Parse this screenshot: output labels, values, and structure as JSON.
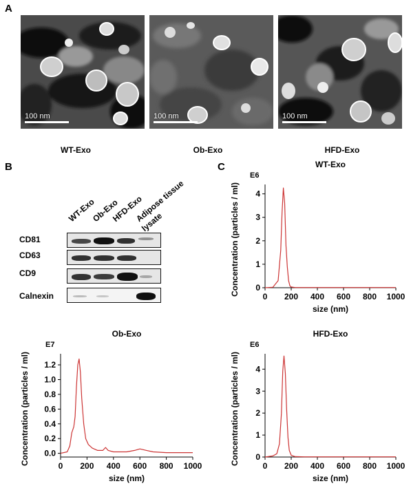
{
  "panels": {
    "a": {
      "letter": "A"
    },
    "b": {
      "letter": "B"
    },
    "c": {
      "letter": "C"
    }
  },
  "tem": {
    "scale_text": "100 nm",
    "images": [
      {
        "label": "WT-Exo"
      },
      {
        "label": "Ob-Exo"
      },
      {
        "label": "HFD-Exo"
      }
    ]
  },
  "western": {
    "columns": [
      "WT-Exo",
      "Ob-Exo",
      "HFD-Exo",
      "Adipose tissue",
      "lysate"
    ],
    "rows": [
      "CD81",
      "CD63",
      "CD9",
      "Calnexin"
    ]
  },
  "chart_data": [
    {
      "type": "line",
      "title": "WT-Exo",
      "multiplier": "E6",
      "xlabel": "size (nm)",
      "ylabel": "Concentration (particles / ml)",
      "xlim": [
        0,
        1000
      ],
      "ylim": [
        0,
        4.4
      ],
      "xticks": [
        0,
        200,
        400,
        600,
        800,
        1000
      ],
      "yticks": [
        0,
        1,
        2,
        3,
        4
      ],
      "color": "#cc3333",
      "x": [
        0,
        60,
        100,
        120,
        130,
        140,
        150,
        160,
        170,
        180,
        190,
        200,
        230,
        300,
        1000
      ],
      "y": [
        0,
        0.02,
        0.3,
        1.6,
        3.2,
        4.25,
        3.6,
        1.8,
        0.9,
        0.3,
        0.08,
        0.03,
        0.01,
        0.01,
        0.01
      ]
    },
    {
      "type": "line",
      "title": "Ob-Exo",
      "multiplier": "E7",
      "xlabel": "size (nm)",
      "ylabel": "Concentration (particles / ml)",
      "xlim": [
        0,
        1000
      ],
      "ylim": [
        -0.05,
        1.35
      ],
      "xticks": [
        0,
        200,
        400,
        600,
        800,
        1000
      ],
      "yticks": [
        0.0,
        0.2,
        0.4,
        0.6,
        0.8,
        1.0,
        1.2
      ],
      "ytick_labels": [
        "0.0",
        "0.2",
        "0.4",
        "0.6",
        "0.8",
        "1.0",
        "1.2"
      ],
      "color": "#cc3333",
      "x": [
        0,
        50,
        70,
        85,
        100,
        110,
        120,
        130,
        140,
        150,
        160,
        175,
        190,
        210,
        240,
        280,
        320,
        340,
        360,
        400,
        500,
        560,
        600,
        650,
        700,
        800,
        1000
      ],
      "y": [
        0,
        0.02,
        0.1,
        0.28,
        0.36,
        0.5,
        0.9,
        1.2,
        1.28,
        1.1,
        0.75,
        0.4,
        0.2,
        0.12,
        0.07,
        0.04,
        0.04,
        0.08,
        0.04,
        0.02,
        0.02,
        0.04,
        0.06,
        0.04,
        0.02,
        0.01,
        0.01
      ]
    },
    {
      "type": "line",
      "title": "HFD-Exo",
      "multiplier": "E6",
      "xlabel": "size (nm)",
      "ylabel": "Concentration (particles / ml)",
      "xlim": [
        0,
        1000
      ],
      "ylim": [
        0,
        4.7
      ],
      "xticks": [
        0,
        200,
        400,
        600,
        800,
        1000
      ],
      "yticks": [
        0,
        1,
        2,
        3,
        4
      ],
      "color": "#cc3333",
      "x": [
        0,
        60,
        90,
        110,
        125,
        135,
        145,
        155,
        165,
        175,
        185,
        200,
        230,
        300,
        1000
      ],
      "y": [
        0,
        0.05,
        0.15,
        0.6,
        2.0,
        3.9,
        4.6,
        3.8,
        2.2,
        0.9,
        0.3,
        0.08,
        0.02,
        0.01,
        0.01
      ]
    }
  ]
}
